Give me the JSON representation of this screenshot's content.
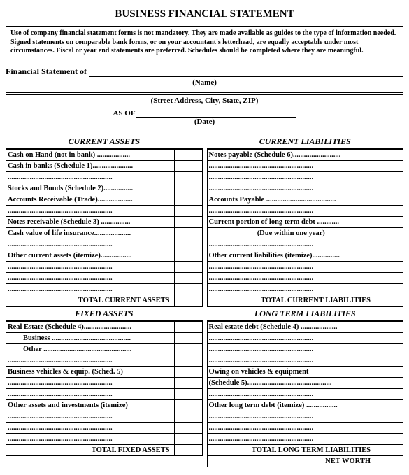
{
  "title": "BUSINESS FINANCIAL STATEMENT",
  "disclaimer": "Use of company financial statement forms is not mandatory.  They are made available as guides to the type of information needed. Signed statements on comparable bank forms, or on your accountant's letterhead, are equally acceptable under most circumstances. Fiscal or year end statements are preferred.  Schedules should be completed where they are meaningful.",
  "fsOfLabel": "Financial Statement of",
  "nameCaption": "(Name)",
  "streetCaption": "(Street Address, City, State, ZIP)",
  "asOfLabel": "AS OF",
  "dateCaption": "(Date)",
  "leftCol": {
    "header1": "CURRENT ASSETS",
    "rows1": [
      "Cash on Hand (not in bank) ..................",
      "Cash in banks (Schedule 1)......................",
      ".........................................................",
      "Stocks and Bonds (Schedule 2)................",
      "Accounts Receivable (Trade)...................",
      ".........................................................",
      "Notes receivable (Schedule 3) ................",
      "Cash value of life insurance....................",
      ".........................................................",
      "Other current assets (itemize).................",
      ".........................................................",
      ".........................................................",
      "........................................................."
    ],
    "total1": "TOTAL CURRENT ASSETS",
    "header2": "FIXED ASSETS",
    "rows2": [
      "Real Estate (Schedule 4)..........................",
      {
        "text": "Business ...........................................",
        "indent": true
      },
      {
        "text": "Other ................................................",
        "indent": true
      },
      ".........................................................",
      "Business vehicles & equip. (Sched. 5)",
      ".........................................................",
      ".........................................................",
      "Other assets and investments (itemize)",
      ".........................................................",
      ".........................................................",
      "........................................................."
    ],
    "total2": "TOTAL FIXED ASSETS"
  },
  "rightCol": {
    "header1": "CURRENT LIABILITIES",
    "rows1": [
      "Notes payable (Schedule 6)..........................",
      ".........................................................",
      ".........................................................",
      ".........................................................",
      "Accounts Payable ......................................",
      ".........................................................",
      "Current portion of long term debt ............",
      {
        "text": "(Due within one year)",
        "center": true
      },
      ".........................................................",
      "Other current liabilities (itemize)...............",
      ".........................................................",
      ".........................................................",
      "........................................................."
    ],
    "total1": "TOTAL CURRENT LIABILITIES",
    "header2": "LONG TERM LIABILITIES",
    "rows2": [
      "Real estate debt (Schedule 4) ....................",
      ".........................................................",
      ".........................................................",
      ".........................................................",
      "Owing on vehicles & equipment",
      "(Schedule 5)..............................................",
      ".........................................................",
      "Other long term debt (itemize) .................",
      ".........................................................",
      ".........................................................",
      "........................................................."
    ],
    "total2": "TOTAL LONG TERM LIABILITIES",
    "netWorth": "NET WORTH"
  }
}
